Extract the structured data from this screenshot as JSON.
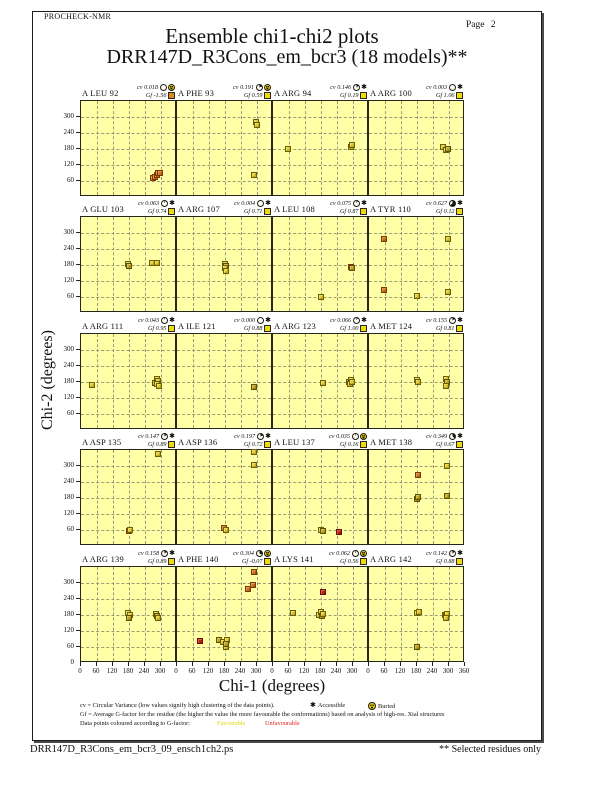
{
  "header": {
    "app": "PROCHECK-NMR",
    "page_label": "Page 2",
    "title": "Ensemble chi1-chi2 plots",
    "subtitle": "DRR147D_R3Cons_em_bcr3 (18 models)**"
  },
  "axes": {
    "x_label": "Chi-1 (degrees)",
    "y_label": "Chi-2 (degrees)"
  },
  "legend": {
    "cv_text": "cv = Circular Variance (low values signify high clustering of the data points).",
    "accessible": "Accessible",
    "buried": "Buried",
    "gf_text": "Gf = Average G-factor for the residue (the higher the value the more favourable the conformations) based on analysis of high-res. Xtal structures",
    "colour_text": "Data points coloured according to G-factor:",
    "favourable": "Favourable",
    "unfavourable": "Unfavourable"
  },
  "footer": {
    "filename": "DRR147D_R3Cons_em_bcr3_09_ensch1ch2.ps",
    "note": "** Selected residues only"
  },
  "colors": {
    "plot_bg": "#ffffa8",
    "grid_line": "#9c9c74",
    "favourable_text": "#e3d400",
    "unfavourable_text": "#dd1f10",
    "points": {
      "y": "#e4cd2b",
      "d": "#c4a81c",
      "o": "#d2741c",
      "r": "#c8200e"
    },
    "point_borders": {
      "y": "#6e6000",
      "d": "#5e5200",
      "o": "#7c3a00",
      "r": "#6e0e00"
    },
    "gf_squares": {
      "yellow": "#f0dc00",
      "orange": "#e08818"
    }
  },
  "chart_data": {
    "type": "scatter",
    "grid": "dashed gridlines every 60 degrees",
    "x_label": "Chi-1 (degrees)",
    "y_label": "Chi-2 (degrees)",
    "x_range": [
      0,
      360
    ],
    "y_range": [
      0,
      360
    ],
    "x_ticks": [
      0,
      60,
      120,
      180,
      240,
      300
    ],
    "x_end_tick": 360,
    "y_ticks": [
      60,
      120,
      180,
      240,
      300
    ],
    "y_zero_tick": 0,
    "cv_prefix": "cv",
    "gf_prefix": "Gf",
    "point_color_key": "y=favourable yellow, d=dark yellow, o=orange, r=red unfavourable",
    "subplots": [
      {
        "residue": "A LEU 92",
        "cv": "0.018",
        "gf": "-1.56",
        "gf_square": "orange",
        "access": "buried",
        "points": [
          [
            268,
            70,
            "o"
          ],
          [
            277,
            76,
            "o"
          ],
          [
            284,
            82,
            "o"
          ],
          [
            289,
            92,
            "o"
          ],
          [
            296,
            89,
            "o"
          ]
        ]
      },
      {
        "residue": "A PHE 93",
        "cv": "0.191",
        "gf": "0.59",
        "gf_square": "yellow",
        "access": "buried",
        "points": [
          [
            295,
            281,
            "y"
          ],
          [
            301,
            272,
            "y"
          ],
          [
            287,
            84,
            "y"
          ]
        ]
      },
      {
        "residue": "A ARG 94",
        "cv": "0.146",
        "gf": "0.19",
        "gf_square": "yellow",
        "access": "accessible",
        "points": [
          [
            57,
            180,
            "y"
          ],
          [
            291,
            186,
            "y"
          ],
          [
            295,
            197,
            "y"
          ]
        ]
      },
      {
        "residue": "A ARG 100",
        "cv": "0.003",
        "gf": "1.06",
        "gf_square": "yellow",
        "access": "accessible",
        "points": [
          [
            279,
            189,
            "y"
          ],
          [
            289,
            177,
            "y"
          ],
          [
            295,
            182,
            "d"
          ]
        ]
      },
      {
        "residue": "A GLU 103",
        "cv": "0.063",
        "gf": "0.74",
        "gf_square": "yellow",
        "access": "accessible",
        "points": [
          [
            177,
            183,
            "y"
          ],
          [
            181,
            176,
            "d"
          ],
          [
            267,
            186,
            "y"
          ],
          [
            285,
            186,
            "y"
          ]
        ]
      },
      {
        "residue": "A ARG 107",
        "cv": "0.004",
        "gf": "0.71",
        "gf_square": "yellow",
        "access": "accessible",
        "points": [
          [
            179,
            183,
            "y"
          ],
          [
            185,
            177,
            "d"
          ],
          [
            181,
            170,
            "y"
          ],
          [
            183,
            157,
            "y"
          ]
        ]
      },
      {
        "residue": "A LEU 108",
        "cv": "0.075",
        "gf": "0.87",
        "gf_square": "yellow",
        "access": "accessible",
        "points": [
          [
            179,
            62,
            "y"
          ],
          [
            292,
            173,
            "o"
          ],
          [
            297,
            168,
            "d"
          ]
        ]
      },
      {
        "residue": "A TYR 110",
        "cv": "0.627",
        "gf": "0.12",
        "gf_square": "yellow",
        "access": "accessible",
        "points": [
          [
            57,
            278,
            "o"
          ],
          [
            295,
            277,
            "y"
          ],
          [
            57,
            88,
            "o"
          ],
          [
            181,
            64,
            "y"
          ],
          [
            297,
            78,
            "y"
          ]
        ]
      },
      {
        "residue": "A ARG 111",
        "cv": "0.043",
        "gf": "0.95",
        "gf_square": "yellow",
        "access": "accessible",
        "points": [
          [
            41,
            170,
            "y"
          ],
          [
            284,
            191,
            "y"
          ],
          [
            279,
            176,
            "d"
          ],
          [
            290,
            183,
            "y"
          ],
          [
            286,
            171,
            "y"
          ],
          [
            292,
            165,
            "y"
          ]
        ]
      },
      {
        "residue": "A ILE 121",
        "cv": "0.000",
        "gf": "0.88",
        "gf_square": "yellow",
        "access": "accessible",
        "points": [
          [
            288,
            161,
            "d"
          ]
        ]
      },
      {
        "residue": "A ARG 123",
        "cv": "0.066",
        "gf": "1.00",
        "gf_square": "yellow",
        "access": "accessible",
        "points": [
          [
            186,
            176,
            "y"
          ],
          [
            285,
            180,
            "d"
          ],
          [
            292,
            189,
            "y"
          ],
          [
            290,
            171,
            "y"
          ],
          [
            296,
            179,
            "y"
          ]
        ]
      },
      {
        "residue": "A MET 124",
        "cv": "0.155",
        "gf": "0.81",
        "gf_square": "yellow",
        "access": "accessible",
        "points": [
          [
            179,
            188,
            "y"
          ],
          [
            185,
            181,
            "y"
          ],
          [
            287,
            193,
            "y"
          ],
          [
            291,
            180,
            "d"
          ],
          [
            290,
            167,
            "y"
          ]
        ]
      },
      {
        "residue": "A ASP 135",
        "cv": "0.147",
        "gf": "0.89",
        "gf_square": "yellow",
        "access": "accessible",
        "points": [
          [
            287,
            347,
            "y"
          ],
          [
            179,
            58,
            "o"
          ],
          [
            185,
            60,
            "y"
          ]
        ]
      },
      {
        "residue": "A ASP 136",
        "cv": "0.197",
        "gf": "0.72",
        "gf_square": "yellow",
        "access": "accessible",
        "points": [
          [
            288,
            352,
            "y"
          ],
          [
            290,
            303,
            "y"
          ],
          [
            177,
            68,
            "o"
          ],
          [
            185,
            61,
            "y"
          ]
        ]
      },
      {
        "residue": "A LEU 137",
        "cv": "0.035",
        "gf": "0.16",
        "gf_square": "yellow",
        "access": "buried",
        "points": [
          [
            181,
            60,
            "y"
          ],
          [
            189,
            57,
            "d"
          ],
          [
            247,
            52,
            "r"
          ]
        ]
      },
      {
        "residue": "A MET 138",
        "cv": "0.349",
        "gf": "0.67",
        "gf_square": "yellow",
        "access": "accessible",
        "points": [
          [
            183,
            265,
            "o"
          ],
          [
            294,
            299,
            "y"
          ],
          [
            179,
            176,
            "d"
          ],
          [
            185,
            183,
            "d"
          ],
          [
            293,
            188,
            "d"
          ]
        ]
      },
      {
        "residue": "A ARG 139",
        "cv": "0.158",
        "gf": "0.89",
        "gf_square": "yellow",
        "access": "accessible",
        "points": [
          [
            176,
            189,
            "y"
          ],
          [
            182,
            180,
            "y"
          ],
          [
            179,
            169,
            "d"
          ],
          [
            281,
            185,
            "y"
          ],
          [
            285,
            176,
            "d"
          ],
          [
            289,
            169,
            "y"
          ]
        ]
      },
      {
        "residue": "A PHE 140",
        "cv": "0.304",
        "gf": "-0.07",
        "gf_square": "yellow",
        "access": "buried",
        "points": [
          [
            287,
            340,
            "o"
          ],
          [
            285,
            292,
            "o"
          ],
          [
            267,
            277,
            "o"
          ],
          [
            85,
            82,
            "r"
          ],
          [
            157,
            85,
            "d"
          ],
          [
            174,
            78,
            "y"
          ],
          [
            182,
            60,
            "y"
          ],
          [
            189,
            86,
            "y"
          ],
          [
            185,
            70,
            "d"
          ]
        ]
      },
      {
        "residue": "A LYS 141",
        "cv": "0.062",
        "gf": "0.56",
        "gf_square": "yellow",
        "access": "buried",
        "points": [
          [
            75,
            186,
            "y"
          ],
          [
            171,
            182,
            "y"
          ],
          [
            179,
            191,
            "y"
          ],
          [
            183,
            176,
            "d"
          ],
          [
            187,
            184,
            "y"
          ],
          [
            189,
            268,
            "r"
          ]
        ]
      },
      {
        "residue": "A ARG 142",
        "cv": "0.142",
        "gf": "0.88",
        "gf_square": "yellow",
        "access": "accessible",
        "points": [
          [
            179,
            188,
            "y"
          ],
          [
            187,
            193,
            "y"
          ],
          [
            179,
            62,
            "d"
          ],
          [
            283,
            182,
            "y"
          ],
          [
            289,
            176,
            "d"
          ],
          [
            293,
            184,
            "y"
          ],
          [
            287,
            168,
            "y"
          ]
        ]
      }
    ]
  }
}
